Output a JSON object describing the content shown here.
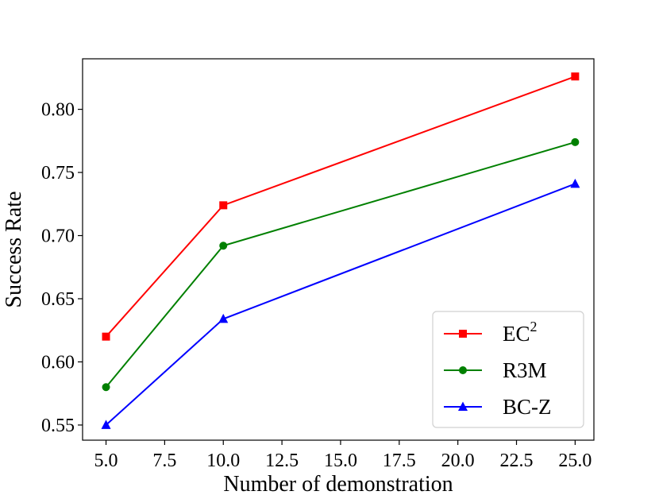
{
  "chart_data": {
    "type": "line",
    "title": "",
    "xlabel": "Number of demonstration",
    "ylabel": "Success Rate",
    "xlim": [
      4.0,
      25.8
    ],
    "ylim": [
      0.538,
      0.84
    ],
    "xticks": [
      5.0,
      7.5,
      10.0,
      12.5,
      15.0,
      17.5,
      20.0,
      22.5,
      25.0
    ],
    "xtick_labels": [
      "5.0",
      "7.5",
      "10.0",
      "12.5",
      "15.0",
      "17.5",
      "20.0",
      "22.5",
      "25.0"
    ],
    "yticks": [
      0.55,
      0.6,
      0.65,
      0.7,
      0.75,
      0.8
    ],
    "ytick_labels": [
      "0.55",
      "0.60",
      "0.65",
      "0.70",
      "0.75",
      "0.80"
    ],
    "grid": false,
    "legend_position": "lower-right",
    "series": [
      {
        "name": "EC",
        "name_sup": "2",
        "color": "#ff0000",
        "marker": "square",
        "x": [
          5,
          10,
          25
        ],
        "y": [
          0.62,
          0.724,
          0.826
        ]
      },
      {
        "name": "R3M",
        "name_sup": "",
        "color": "#008000",
        "marker": "circle",
        "x": [
          5,
          10,
          25
        ],
        "y": [
          0.58,
          0.692,
          0.774
        ]
      },
      {
        "name": "BC-Z",
        "name_sup": "",
        "color": "#0000ff",
        "marker": "triangle",
        "x": [
          5,
          10,
          25
        ],
        "y": [
          0.55,
          0.634,
          0.741
        ]
      }
    ]
  }
}
